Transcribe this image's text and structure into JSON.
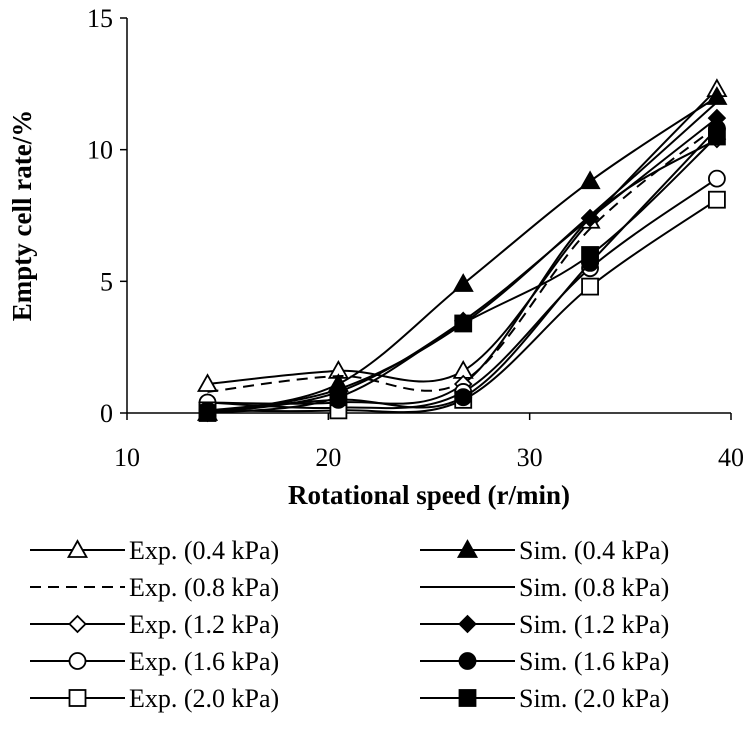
{
  "chart_data": {
    "type": "line",
    "title": "",
    "xlabel": "Rotational speed (r/min)",
    "ylabel": "Empty cell rate/%",
    "xlim": [
      10,
      40
    ],
    "ylim": [
      0,
      15
    ],
    "xticks": [
      "10",
      "20",
      "30",
      "40"
    ],
    "yticks": [
      "0",
      "5",
      "10",
      "15"
    ],
    "x": [
      14,
      20.5,
      26.7,
      33,
      39.3
    ],
    "series": [
      {
        "name": "Exp. (0.4 kPa)",
        "values": [
          1.1,
          1.6,
          1.6,
          7.3,
          12.3
        ],
        "marker": "triangle-open",
        "dash": "solid"
      },
      {
        "name": "Exp. (0.8 kPa)",
        "values": [
          0.8,
          1.4,
          1.2,
          7.0,
          10.9
        ],
        "marker": "none",
        "dash": "dashed"
      },
      {
        "name": "Exp. (1.2 kPa)",
        "values": [
          0.4,
          0.4,
          1.1,
          7.4,
          10.4
        ],
        "marker": "diamond-open",
        "dash": "solid"
      },
      {
        "name": "Exp. (1.6 kPa)",
        "values": [
          0.4,
          0.2,
          0.8,
          5.5,
          8.9
        ],
        "marker": "circle-open",
        "dash": "solid"
      },
      {
        "name": "Exp. (2.0 kPa)",
        "values": [
          0.1,
          0.1,
          0.5,
          4.8,
          8.1
        ],
        "marker": "square-open",
        "dash": "solid"
      },
      {
        "name": "Sim. (0.4 kPa)",
        "values": [
          0.0,
          1.1,
          4.9,
          8.8,
          12.0
        ],
        "marker": "triangle-filled",
        "dash": "solid"
      },
      {
        "name": "Sim. (0.8 kPa)",
        "values": [
          0.0,
          0.9,
          3.4,
          7.5,
          11.8
        ],
        "marker": "none",
        "dash": "solid"
      },
      {
        "name": "Sim. (1.2 kPa)",
        "values": [
          0.0,
          0.8,
          3.5,
          7.4,
          11.2
        ],
        "marker": "diamond-filled",
        "dash": "solid"
      },
      {
        "name": "Sim. (1.6 kPa)",
        "values": [
          0.1,
          0.5,
          0.6,
          5.7,
          10.8
        ],
        "marker": "circle-filled",
        "dash": "solid"
      },
      {
        "name": "Sim. (2.0 kPa)",
        "values": [
          0.0,
          0.6,
          3.4,
          6.0,
          10.5
        ],
        "marker": "square-filled",
        "dash": "solid"
      }
    ],
    "grid": false,
    "legend_position": "bottom"
  }
}
